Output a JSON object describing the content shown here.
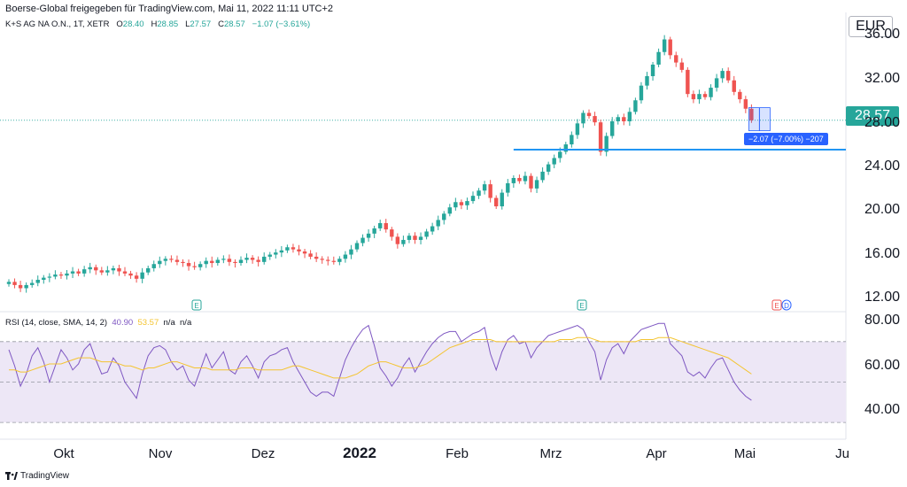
{
  "header": {
    "title": "Boerse-Global freigegeben für TradingView.com, Mai 11, 2022 11:11 UTC+2"
  },
  "legend": {
    "symbol": "K+S AG NA O.N., 1T, XETR",
    "o_label": "O",
    "o_value": "28.40",
    "h_label": "H",
    "h_value": "28.85",
    "l_label": "L",
    "l_value": "27.57",
    "c_label": "C",
    "c_value": "28.57",
    "change": "−1.07 (−3.61%)"
  },
  "rsi_legend": {
    "label": "RSI (14, close, SMA, 14, 2)",
    "rsi_value": "40.90",
    "sma_value": "53.57",
    "na1": "n/a",
    "na2": "n/a"
  },
  "currency": "EUR",
  "current_price": "28.57",
  "measure_label": "−2.07 (−7.00%) −207",
  "footer": {
    "brand": "TradingView"
  },
  "colors": {
    "up": "#26a69a",
    "down": "#ef5350",
    "rsi": "#7e57c2",
    "sma": "#f4c430",
    "level": "#2196f3",
    "rsi_band": "#ede7f6"
  },
  "events": [
    {
      "label": "E",
      "color": "#26a69a"
    },
    {
      "label": "E",
      "color": "#26a69a"
    },
    {
      "label": "E",
      "color": "#ef5350"
    },
    {
      "label": "D",
      "color": "#2962ff"
    }
  ],
  "chart_data": {
    "type": "candlestick",
    "x_axis": {
      "ticks": [
        "Okt",
        "Nov",
        "Dez",
        "2022",
        "Feb",
        "Mrz",
        "Apr",
        "Mai",
        "Ju"
      ]
    },
    "price_axis": {
      "ticks": [
        "36.00",
        "32.00",
        "28.00",
        "24.00",
        "20.00",
        "16.00",
        "12.00"
      ],
      "ylim": [
        10.7,
        38.2
      ]
    },
    "rsi_axis": {
      "ticks": [
        "80.00",
        "60.00",
        "40.00"
      ],
      "ylim": [
        23.5,
        83.5
      ],
      "bands": [
        30,
        50,
        70
      ]
    },
    "horizontal_level": 25.8,
    "closes": [
      13.2,
      12.9,
      12.6,
      12.9,
      13.1,
      13.4,
      13.6,
      13.7,
      13.9,
      13.8,
      14.0,
      14.2,
      14.0,
      14.4,
      14.6,
      14.3,
      14.1,
      14.3,
      14.5,
      14.2,
      14.0,
      13.8,
      13.5,
      14.1,
      14.5,
      14.9,
      15.2,
      15.4,
      15.3,
      15.1,
      15.0,
      14.7,
      14.6,
      14.9,
      15.2,
      15.0,
      15.3,
      15.4,
      15.1,
      15.0,
      15.3,
      15.5,
      15.3,
      15.1,
      15.6,
      15.8,
      16.0,
      16.2,
      16.5,
      16.3,
      16.1,
      15.9,
      15.6,
      15.4,
      15.3,
      15.2,
      15.1,
      15.4,
      15.8,
      16.3,
      16.9,
      17.4,
      17.8,
      18.3,
      18.8,
      18.2,
      17.5,
      16.8,
      17.2,
      17.6,
      17.2,
      17.5,
      18.0,
      18.5,
      19.1,
      19.7,
      20.3,
      20.8,
      20.5,
      20.9,
      21.4,
      21.9,
      22.5,
      21.2,
      20.4,
      21.7,
      22.6,
      23.1,
      22.8,
      23.3,
      22.1,
      22.9,
      23.7,
      24.4,
      25.0,
      25.6,
      26.3,
      27.2,
      28.3,
      29.3,
      29.0,
      28.4,
      25.6,
      27.1,
      28.5,
      28.9,
      28.5,
      29.4,
      30.5,
      31.9,
      32.8,
      33.9,
      35.1,
      36.3,
      34.8,
      34.1,
      33.4,
      31.1,
      30.6,
      31.1,
      30.8,
      31.7,
      32.6,
      33.3,
      32.4,
      31.3,
      30.6,
      29.7,
      28.6
    ],
    "rsi_values": [
      66,
      58,
      48,
      54,
      63,
      67,
      60,
      50,
      58,
      66,
      62,
      56,
      59,
      66,
      69,
      61,
      54,
      55,
      62,
      58,
      50,
      46,
      42,
      54,
      63,
      67,
      68,
      66,
      60,
      56,
      58,
      51,
      48,
      56,
      64,
      57,
      61,
      65,
      56,
      54,
      60,
      63,
      58,
      52,
      60,
      63,
      64,
      66,
      67,
      60,
      55,
      50,
      45,
      43,
      45,
      45,
      43,
      52,
      61,
      67,
      72,
      76,
      78,
      68,
      57,
      53,
      48,
      52,
      58,
      62,
      55,
      60,
      65,
      69,
      72,
      74,
      75,
      75,
      70,
      72,
      74,
      75,
      77,
      64,
      56,
      65,
      71,
      73,
      69,
      70,
      62,
      67,
      70,
      73,
      74,
      75,
      76,
      77,
      78,
      76,
      70,
      65,
      51,
      61,
      67,
      69,
      64,
      70,
      73,
      76,
      77,
      78,
      79,
      79,
      69,
      66,
      63,
      55,
      53,
      55,
      52,
      57,
      61,
      62,
      56,
      50,
      46,
      43,
      41
    ],
    "rsi_sma": [
      56,
      56,
      55,
      55,
      56,
      57,
      58,
      59,
      59,
      59,
      60,
      61,
      62,
      62,
      62,
      61,
      60,
      60,
      60,
      59,
      58,
      58,
      57,
      56,
      57,
      57,
      58,
      59,
      60,
      60,
      59,
      58,
      57,
      57,
      57,
      56,
      56,
      56,
      56,
      56,
      57,
      57,
      57,
      56,
      56,
      56,
      56,
      56,
      57,
      58,
      58,
      57,
      56,
      55,
      54,
      53,
      52,
      52,
      52,
      53,
      54,
      56,
      58,
      59,
      60,
      60,
      59,
      58,
      57,
      57,
      57,
      58,
      59,
      61,
      63,
      65,
      67,
      68,
      69,
      70,
      71,
      71,
      71,
      71,
      70,
      70,
      70,
      70,
      70,
      70,
      70,
      70,
      70,
      70,
      70,
      71,
      71,
      71,
      72,
      72,
      72,
      71,
      70,
      70,
      70,
      70,
      70,
      70,
      70,
      71,
      71,
      71,
      72,
      72,
      72,
      71,
      70,
      69,
      68,
      67,
      66,
      65,
      64,
      63,
      62,
      60,
      58,
      56,
      54
    ]
  }
}
